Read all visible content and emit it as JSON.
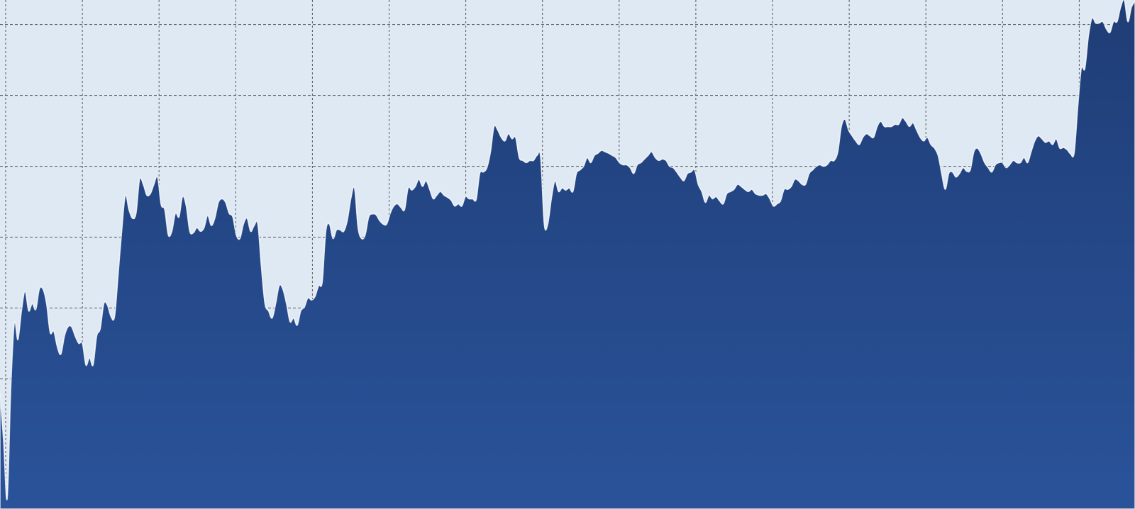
{
  "chart_data": {
    "type": "area",
    "title": "",
    "xlabel": "",
    "ylabel": "",
    "ylim": [
      0,
      70.4
    ],
    "grid": true,
    "grid_style": "dashed",
    "y_gridlines": [
      18.0,
      27.8,
      37.6,
      47.4,
      57.2,
      67.0
    ],
    "colors": {
      "background": "#dfe9f4",
      "fill_top": "#1f3d76",
      "fill_bottom": "#2a539a",
      "grid": "#555555",
      "edge": "#ffffff"
    },
    "values": [
      15.9,
      9.4,
      1.4,
      16.4,
      25.7,
      23.4,
      27.4,
      30.1,
      27.4,
      28.4,
      27.6,
      30.4,
      30.4,
      28.4,
      24.4,
      24.6,
      22.4,
      21.4,
      23.9,
      25.2,
      25.2,
      23.9,
      22.9,
      22.9,
      19.9,
      20.9,
      19.9,
      23.9,
      24.9,
      28.4,
      28.2,
      26.6,
      26.6,
      32.4,
      38.4,
      43.4,
      41.4,
      40.2,
      40.9,
      45.6,
      44.9,
      43.4,
      43.6,
      44.9,
      45.9,
      42.1,
      41.4,
      37.9,
      38.4,
      40.9,
      40.4,
      43.2,
      41.9,
      38.4,
      38.2,
      38.9,
      38.4,
      38.9,
      40.6,
      39.2,
      40.2,
      42.4,
      42.9,
      42.4,
      40.9,
      40.4,
      37.9,
      37.4,
      39.4,
      40.2,
      38.4,
      39.2,
      39.4,
      33.4,
      28.4,
      27.4,
      26.4,
      28.4,
      30.9,
      30.4,
      28.4,
      25.9,
      26.4,
      25.4,
      27.4,
      27.9,
      29.2,
      28.9,
      29.4,
      30.9,
      31.4,
      38.4,
      39.4,
      37.4,
      38.6,
      38.6,
      38.4,
      39.9,
      42.9,
      44.4,
      38.9,
      37.4,
      37.9,
      40.4,
      40.8,
      40.7,
      39.9,
      39.4,
      39.4,
      40.9,
      41.9,
      42.2,
      41.7,
      41.4,
      44.4,
      44.1,
      44.6,
      45.6,
      44.6,
      45.4,
      44.2,
      42.9,
      43.4,
      43.9,
      43.4,
      43.1,
      42.7,
      41.9,
      42.2,
      41.9,
      43.2,
      42.9,
      42.9,
      42.8,
      46.4,
      46.6,
      47.2,
      49.4,
      52.9,
      52.4,
      51.4,
      50.9,
      51.9,
      51.2,
      51.4,
      48.6,
      48.2,
      47.9,
      48.2,
      48.2,
      48.9,
      48.6,
      39.4,
      39.4,
      42.9,
      45.4,
      43.9,
      44.4,
      44.1,
      44.4,
      43.9,
      46.4,
      46.9,
      47.4,
      48.6,
      47.9,
      48.9,
      49.2,
      49.6,
      49.4,
      49.2,
      48.9,
      48.6,
      47.9,
      47.6,
      47.6,
      47.2,
      46.4,
      47.6,
      47.9,
      48.4,
      48.9,
      49.4,
      48.6,
      48.2,
      48.4,
      48.2,
      47.4,
      47.2,
      46.6,
      45.9,
      45.4,
      46.4,
      46.6,
      46.9,
      44.9,
      43.9,
      42.4,
      43.4,
      42.9,
      43.2,
      42.6,
      42.2,
      43.6,
      43.9,
      44.2,
      44.9,
      44.6,
      44.2,
      43.9,
      44.2,
      43.6,
      43.4,
      43.4,
      43.6,
      42.9,
      41.9,
      42.2,
      42.6,
      44.2,
      44.2,
      44.6,
      45.6,
      45.4,
      44.9,
      44.9,
      46.4,
      46.9,
      47.4,
      47.6,
      47.4,
      47.6,
      48.2,
      48.2,
      49.4,
      52.9,
      53.9,
      52.4,
      51.6,
      50.9,
      50.4,
      51.4,
      51.9,
      51.6,
      51.4,
      52.9,
      53.6,
      52.9,
      52.9,
      52.9,
      53.2,
      53.2,
      54.1,
      53.6,
      52.9,
      53.4,
      52.4,
      51.4,
      50.9,
      51.4,
      50.4,
      49.9,
      48.9,
      46.4,
      44.2,
      46.4,
      46.6,
      45.9,
      46.4,
      47.2,
      46.7,
      46.9,
      49.4,
      49.9,
      49.1,
      47.9,
      47.2,
      46.6,
      47.6,
      47.9,
      47.9,
      47.2,
      47.6,
      48.2,
      47.9,
      47.9,
      48.6,
      47.9,
      49.4,
      50.9,
      51.6,
      51.2,
      50.7,
      50.9,
      50.4,
      51.2,
      49.9,
      50.0,
      49.7,
      49.1,
      49.2,
      55.4,
      60.9,
      60.9,
      65.4,
      67.9,
      67.2,
      67.2,
      67.4,
      66.4,
      65.9,
      67.4,
      67.4,
      69.4,
      70.4,
      67.4,
      69.4,
      70.2
    ]
  }
}
